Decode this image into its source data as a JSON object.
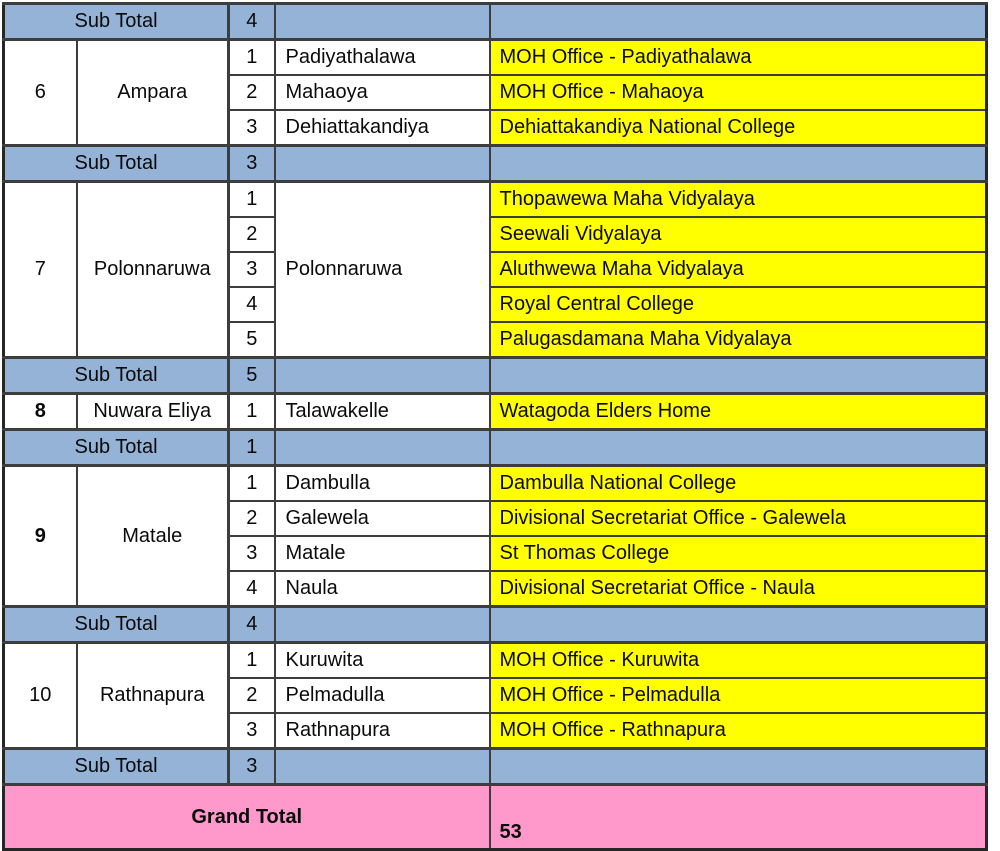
{
  "colors": {
    "subtotal_blue": "#95B3D7",
    "venue_yellow": "#FFFF00",
    "grand_total_pink": "#FF99CC",
    "border_dark": "#3d3d3d"
  },
  "sections": [
    {
      "type": "subtotal",
      "label": "Sub Total",
      "count": "4"
    },
    {
      "type": "district",
      "no": "6",
      "name": "Ampara",
      "items": [
        {
          "n": "1",
          "place": "Padiyathalawa",
          "venue": "MOH Office - Padiyathalawa"
        },
        {
          "n": "2",
          "place": "Mahaoya",
          "venue": "MOH Office - Mahaoya"
        },
        {
          "n": "3",
          "place": "Dehiattakandiya",
          "venue": "Dehiattakandiya National College"
        }
      ]
    },
    {
      "type": "subtotal",
      "label": "Sub Total",
      "count": "3"
    },
    {
      "type": "district",
      "no": "7",
      "name": "Polonnaruwa",
      "place": "Polonnaruwa",
      "items": [
        {
          "n": "1",
          "venue": "Thopawewa Maha Vidyalaya"
        },
        {
          "n": "2",
          "venue": "Seewali Vidyalaya"
        },
        {
          "n": "3",
          "venue": "Aluthwewa Maha Vidyalaya"
        },
        {
          "n": "4",
          "venue": "Royal Central College"
        },
        {
          "n": "5",
          "venue": "Palugasdamana Maha Vidyalaya"
        }
      ]
    },
    {
      "type": "subtotal",
      "label": "Sub Total",
      "count": "5"
    },
    {
      "type": "district",
      "no": "8",
      "name": "Nuwara Eliya",
      "items": [
        {
          "n": "1",
          "place": "Talawakelle",
          "venue": "Watagoda Elders Home"
        }
      ]
    },
    {
      "type": "subtotal",
      "label": "Sub Total",
      "count": "1"
    },
    {
      "type": "district",
      "no": "9",
      "name": "Matale",
      "items": [
        {
          "n": "1",
          "place": "Dambulla",
          "venue": "Dambulla National College"
        },
        {
          "n": "2",
          "place": "Galewela",
          "venue": "Divisional Secretariat Office - Galewela"
        },
        {
          "n": "3",
          "place": "Matale",
          "venue": "St Thomas College"
        },
        {
          "n": "4",
          "place": "Naula",
          "venue": "Divisional Secretariat Office - Naula"
        }
      ]
    },
    {
      "type": "subtotal",
      "label": "Sub Total",
      "count": "4"
    },
    {
      "type": "district",
      "no": "10",
      "name": "Rathnapura",
      "items": [
        {
          "n": "1",
          "place": "Kuruwita",
          "venue": "MOH Office - Kuruwita"
        },
        {
          "n": "2",
          "place": "Pelmadulla",
          "venue": "MOH Office - Pelmadulla"
        },
        {
          "n": "3",
          "place": "Rathnapura",
          "venue": "MOH Office - Rathnapura"
        }
      ]
    },
    {
      "type": "subtotal",
      "label": "Sub Total",
      "count": "3"
    },
    {
      "type": "grandtotal",
      "label": "Grand Total",
      "count": "53"
    }
  ]
}
